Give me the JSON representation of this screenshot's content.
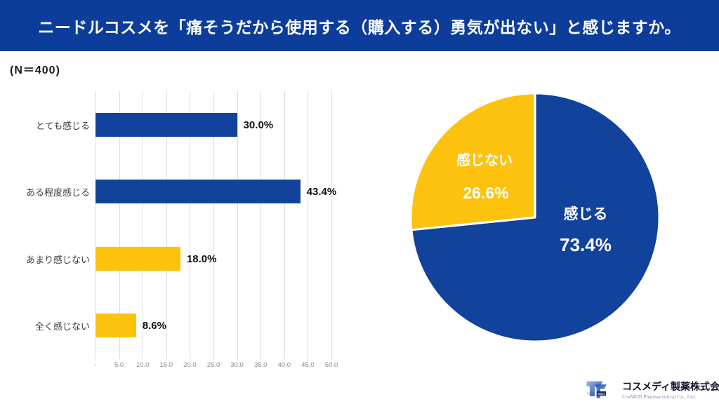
{
  "header": {
    "title": "ニードルコスメを「痛そうだから使用する（購入する）勇気が出ない」と感じますか。",
    "sample_size": "(N＝400)"
  },
  "colors": {
    "title_bar_bg": "#0d3d9a",
    "brand_blue": "#11429c",
    "accent_yellow": "#fcc20e",
    "grid_line": "#dcdcdc",
    "tick_text": "#8c8c8c",
    "value_text": "#111111",
    "category_text": "#3a3a3a",
    "pie_label_text": "#ffffff"
  },
  "chart_data": [
    {
      "type": "bar",
      "orientation": "horizontal",
      "title": "",
      "categories": [
        "とても感じる",
        "ある程度感じる",
        "あまり感じない",
        "全く感じない"
      ],
      "values": [
        30.0,
        43.4,
        18.0,
        8.6
      ],
      "value_labels": [
        "30.0%",
        "43.4%",
        "18.0%",
        "8.6%"
      ],
      "bar_colors": [
        "#11429c",
        "#11429c",
        "#fcc20e",
        "#fcc20e"
      ],
      "xlim": [
        0,
        50
      ],
      "x_tick_values": [
        0,
        5,
        10,
        15,
        20,
        25,
        30,
        35,
        40,
        45,
        50
      ],
      "x_tick_labels": [
        "-",
        "5.0",
        "10.0",
        "15.0",
        "20.0",
        "25.0",
        "30.0",
        "35.0",
        "40.0",
        "45.0",
        "50.0"
      ],
      "grid": "vertical",
      "legend": "none"
    },
    {
      "type": "pie",
      "start": "top",
      "direction": "clockwise",
      "slices": [
        {
          "label": "感じる",
          "value": 73.4,
          "value_label": "73.4%",
          "color": "#11429c"
        },
        {
          "label": "感じない",
          "value": 26.6,
          "value_label": "26.6%",
          "color": "#fcc20e"
        }
      ]
    }
  ],
  "footer": {
    "company_name": "コスメディ製薬株式会社",
    "company_name_en": "CosMED Pharmaceutical Co., Ltd.",
    "logo_cos": "COS",
    "logo_med": "MED"
  }
}
